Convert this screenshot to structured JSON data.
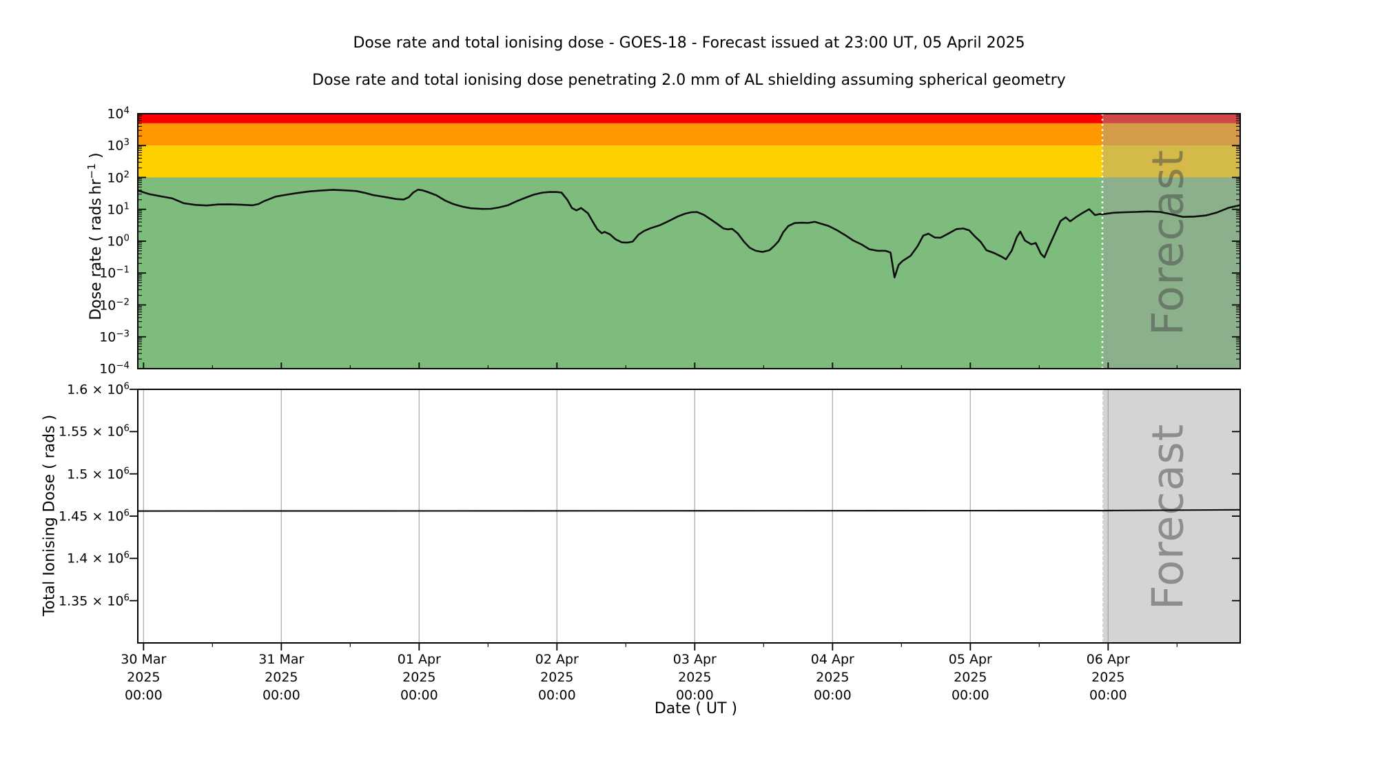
{
  "figure": {
    "title": "Dose rate and total ionising dose - GOES-18 - Forecast issued at 23:00 UT, 05 April 2025",
    "subtitle": "Dose rate and total ionising dose penetrating 2.0 mm of AL shielding assuming spherical geometry",
    "background": "#ffffff"
  },
  "forecast": {
    "label": "Forecast",
    "issued_at": "23:00 UT, 05 April 2025",
    "start_hour": 168
  },
  "colors": {
    "band_red": "#fa0000",
    "band_orange": "#ff9800",
    "band_yellow": "#ffd000",
    "band_green": "#7dbc7d",
    "forecast_overlay": "rgba(160,160,160,0.45)",
    "grid": "#b3b3b3",
    "line": "#0d0d0d",
    "dotted_divider": "#ffffff",
    "watermark": "rgba(70,70,70,0.5)"
  },
  "top_chart": {
    "ylabel": {
      "prefix": "Dose rate ( rads hr",
      "sup": "−1",
      "suffix": " )"
    },
    "yticks": [
      {
        "exp": "4"
      },
      {
        "exp": "3"
      },
      {
        "exp": "2"
      },
      {
        "exp": "1"
      },
      {
        "exp": "0"
      },
      {
        "exp": "−1"
      },
      {
        "exp": "−2"
      },
      {
        "exp": "−3"
      },
      {
        "exp": "−4"
      }
    ]
  },
  "bottom_chart": {
    "ylabel": "Total Ionising Dose ( rads )",
    "yticks": [
      {
        "mantissa": "1.6"
      },
      {
        "mantissa": "1.55"
      },
      {
        "mantissa": "1.5"
      },
      {
        "mantissa": "1.45"
      },
      {
        "mantissa": "1.4"
      },
      {
        "mantissa": "1.35"
      }
    ]
  },
  "x_axis": {
    "label": "Date ( UT )",
    "days": [
      {
        "date": "30 Mar",
        "year": "2025",
        "time": "00:00",
        "hour": 1
      },
      {
        "date": "31 Mar",
        "year": "2025",
        "time": "00:00",
        "hour": 25
      },
      {
        "date": "01 Apr",
        "year": "2025",
        "time": "00:00",
        "hour": 49
      },
      {
        "date": "02 Apr",
        "year": "2025",
        "time": "00:00",
        "hour": 73
      },
      {
        "date": "03 Apr",
        "year": "2025",
        "time": "00:00",
        "hour": 97
      },
      {
        "date": "04 Apr",
        "year": "2025",
        "time": "00:00",
        "hour": 121
      },
      {
        "date": "05 Apr",
        "year": "2025",
        "time": "00:00",
        "hour": 145
      },
      {
        "date": "06 Apr",
        "year": "2025",
        "time": "00:00",
        "hour": 169
      }
    ],
    "minor_tick_hours": [
      13,
      37,
      61,
      85,
      109,
      133,
      157,
      181
    ],
    "total_hours": 192
  },
  "chart_data": [
    {
      "type": "line",
      "title": "Dose rate and total ionising dose - GOES-18 - Forecast issued at 23:00 UT, 05 April 2025",
      "subtitle": "Dose rate and total ionising dose penetrating 2.0 mm of AL shielding assuming spherical geometry",
      "xlabel": "Date ( UT )",
      "ylabel": "Dose rate ( rads hr⁻¹ )",
      "y_scale": "log",
      "ylim": [
        0.0001,
        10000
      ],
      "x_range_hours": [
        0,
        192
      ],
      "x_start": "29 Mar 2025 23:00 UT",
      "x_end": "06 Apr 2025 23:00 UT",
      "grid": false,
      "legend": "none",
      "threshold_bands": [
        {
          "color": "#fa0000",
          "from": 5000,
          "to": 10000
        },
        {
          "color": "#ff9800",
          "from": 1000,
          "to": 5000
        },
        {
          "color": "#ffd000",
          "from": 100,
          "to": 1000
        },
        {
          "color": "#7dbc7d",
          "from": 0.0001,
          "to": 100
        }
      ],
      "forecast_region_hours": [
        168,
        192
      ],
      "series": [
        {
          "name": "dose_rate_rads_per_hr",
          "color": "#0d0d0d",
          "points": [
            [
              0,
              39
            ],
            [
              2,
              30
            ],
            [
              4,
              25.5
            ],
            [
              6,
              22
            ],
            [
              8,
              15.5
            ],
            [
              10,
              13.8
            ],
            [
              12,
              13.2
            ],
            [
              14,
              14.2
            ],
            [
              16,
              14.3
            ],
            [
              18,
              13.9
            ],
            [
              20,
              13.4
            ],
            [
              21,
              14.6
            ],
            [
              22,
              18
            ],
            [
              24,
              25
            ],
            [
              26,
              29
            ],
            [
              28,
              33
            ],
            [
              30,
              36.5
            ],
            [
              32,
              39
            ],
            [
              34,
              41
            ],
            [
              36,
              39.5
            ],
            [
              38,
              37.5
            ],
            [
              39.5,
              33
            ],
            [
              41,
              28
            ],
            [
              43,
              24.5
            ],
            [
              45,
              21
            ],
            [
              46.3,
              20.2
            ],
            [
              47.2,
              24
            ],
            [
              48,
              34
            ],
            [
              48.8,
              41.3
            ],
            [
              49.6,
              39.5
            ],
            [
              50.5,
              35
            ],
            [
              52,
              27.5
            ],
            [
              53.5,
              19
            ],
            [
              55,
              14.5
            ],
            [
              56.5,
              12.2
            ],
            [
              58,
              10.8
            ],
            [
              60,
              10.3
            ],
            [
              61.5,
              10.4
            ],
            [
              63,
              11.5
            ],
            [
              64.5,
              13.5
            ],
            [
              66,
              18
            ],
            [
              67.5,
              23
            ],
            [
              69,
              29
            ],
            [
              70.5,
              33.5
            ],
            [
              71.8,
              35
            ],
            [
              73,
              34.8
            ],
            [
              73.8,
              33.5
            ],
            [
              74.8,
              20
            ],
            [
              75.6,
              11
            ],
            [
              76.4,
              9.2
            ],
            [
              77.2,
              11
            ],
            [
              78.4,
              7.5
            ],
            [
              79.2,
              4.2
            ],
            [
              80,
              2.4
            ],
            [
              80.8,
              1.78
            ],
            [
              81.3,
              1.95
            ],
            [
              82.2,
              1.65
            ],
            [
              83.2,
              1.15
            ],
            [
              84.3,
              0.92
            ],
            [
              85.2,
              0.9
            ],
            [
              86.2,
              0.97
            ],
            [
              87.2,
              1.6
            ],
            [
              88.2,
              2.1
            ],
            [
              89.3,
              2.55
            ],
            [
              91,
              3.2
            ],
            [
              92.5,
              4.3
            ],
            [
              94,
              5.9
            ],
            [
              95.3,
              7.3
            ],
            [
              96.4,
              8.1
            ],
            [
              97.4,
              8.2
            ],
            [
              98.6,
              6.7
            ],
            [
              99.8,
              4.8
            ],
            [
              101,
              3.4
            ],
            [
              102,
              2.5
            ],
            [
              102.8,
              2.35
            ],
            [
              103.5,
              2.45
            ],
            [
              104.5,
              1.75
            ],
            [
              105.6,
              0.95
            ],
            [
              106.6,
              0.62
            ],
            [
              107.6,
              0.5
            ],
            [
              108.8,
              0.46
            ],
            [
              110,
              0.52
            ],
            [
              110.8,
              0.7
            ],
            [
              111.6,
              1
            ],
            [
              112.4,
              1.9
            ],
            [
              113.3,
              3
            ],
            [
              114.4,
              3.7
            ],
            [
              115.6,
              3.8
            ],
            [
              116.8,
              3.75
            ],
            [
              117.9,
              4.05
            ],
            [
              119,
              3.55
            ],
            [
              120.3,
              3
            ],
            [
              121.8,
              2.2
            ],
            [
              123.2,
              1.55
            ],
            [
              124.6,
              1.05
            ],
            [
              126,
              0.8
            ],
            [
              127.4,
              0.56
            ],
            [
              128.8,
              0.5
            ],
            [
              130.2,
              0.5
            ],
            [
              131.1,
              0.44
            ],
            [
              131.8,
              0.073
            ],
            [
              132.5,
              0.18
            ],
            [
              133.2,
              0.24
            ],
            [
              134.6,
              0.35
            ],
            [
              135.8,
              0.7
            ],
            [
              136.8,
              1.5
            ],
            [
              137.7,
              1.72
            ],
            [
              138.8,
              1.3
            ],
            [
              139.8,
              1.28
            ],
            [
              141.2,
              1.75
            ],
            [
              142.6,
              2.4
            ],
            [
              143.8,
              2.5
            ],
            [
              144.8,
              2.2
            ],
            [
              145.8,
              1.4
            ],
            [
              146.8,
              0.95
            ],
            [
              147.8,
              0.52
            ],
            [
              149.2,
              0.42
            ],
            [
              150.4,
              0.33
            ],
            [
              151.2,
              0.27
            ],
            [
              152.2,
              0.5
            ],
            [
              153.1,
              1.35
            ],
            [
              153.7,
              2
            ],
            [
              154.5,
              1.05
            ],
            [
              155.6,
              0.8
            ],
            [
              156.4,
              0.88
            ],
            [
              157.3,
              0.4
            ],
            [
              157.9,
              0.31
            ],
            [
              158.7,
              0.68
            ],
            [
              159.7,
              1.7
            ],
            [
              160.7,
              4.3
            ],
            [
              161.6,
              5.6
            ],
            [
              162.4,
              4.2
            ],
            [
              163.4,
              5.7
            ],
            [
              164.4,
              7.4
            ],
            [
              165.7,
              10.1
            ],
            [
              166.7,
              6.6
            ],
            [
              167.5,
              7.1
            ],
            [
              168,
              7
            ],
            [
              170,
              7.8
            ],
            [
              172,
              8.1
            ],
            [
              174,
              8.3
            ],
            [
              176,
              8.6
            ],
            [
              178,
              8.3
            ],
            [
              180,
              7
            ],
            [
              182,
              5.8
            ],
            [
              184,
              5.9
            ],
            [
              186,
              6.4
            ],
            [
              188,
              8
            ],
            [
              190,
              11.2
            ],
            [
              192,
              13.5
            ]
          ]
        }
      ]
    },
    {
      "type": "line",
      "xlabel": "Date ( UT )",
      "ylabel": "Total Ionising Dose ( rads )",
      "y_scale": "linear",
      "ylim": [
        1300000,
        1600000
      ],
      "ytick_values": [
        1600000,
        1550000,
        1500000,
        1450000,
        1400000,
        1350000
      ],
      "x_range_hours": [
        0,
        192
      ],
      "grid": "vertical-daily",
      "legend": "none",
      "forecast_region_hours": [
        168,
        192
      ],
      "series": [
        {
          "name": "total_ionising_dose_rads",
          "color": "#0d0d0d",
          "points": [
            [
              0,
              1456000
            ],
            [
              168,
              1456500
            ],
            [
              192,
              1457500
            ]
          ]
        }
      ]
    }
  ]
}
